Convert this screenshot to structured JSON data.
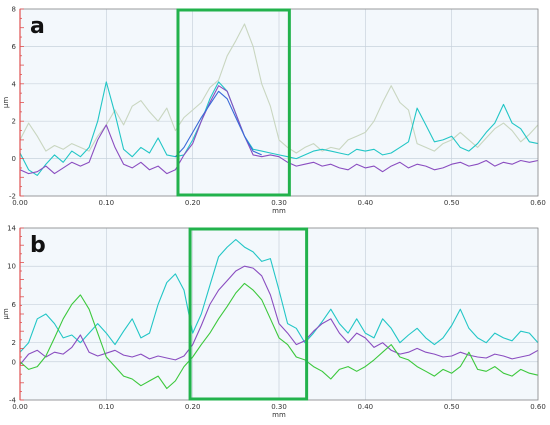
{
  "colors": {
    "plot_bg": "#f3f8fc",
    "grid": "#c8d2dc",
    "axis": "#8a8a8a",
    "y_axis_red": "#e05050",
    "highlight_box": "#22b24c",
    "series_cyan": "#22c6c6",
    "series_purple": "#8a4dc0",
    "series_blue": "#3a6ad8",
    "series_grey": "#c9d6c0",
    "series_green": "#3cc83c"
  },
  "chart_data": [
    {
      "type": "line",
      "panel_label": "a",
      "xlabel": "mm",
      "ylabel": "µm",
      "xlim": [
        0.0,
        0.6
      ],
      "ylim": [
        -2,
        8
      ],
      "x_ticks": [
        "0.00",
        "0.10",
        "0.20",
        "0.30",
        "0.40",
        "0.50",
        "0.60"
      ],
      "y_ticks": [
        "-2",
        "0",
        "2",
        "4",
        "6",
        "8"
      ],
      "x_tick_values": [
        0.0,
        0.1,
        0.2,
        0.3,
        0.4,
        0.5,
        0.6
      ],
      "y_tick_values": [
        -2,
        0,
        2,
        4,
        6,
        8
      ],
      "grid": true,
      "highlight_region": {
        "x_start": 0.183,
        "x_end": 0.312
      },
      "series": [
        {
          "color": "#c9d6c0",
          "x": [
            0.0,
            0.01,
            0.02,
            0.03,
            0.04,
            0.05,
            0.06,
            0.07,
            0.08,
            0.09,
            0.1,
            0.11,
            0.12,
            0.13,
            0.14,
            0.15,
            0.16,
            0.17,
            0.18,
            0.19,
            0.2,
            0.21,
            0.22,
            0.23,
            0.24,
            0.25,
            0.26,
            0.27,
            0.28,
            0.29,
            0.3,
            0.31,
            0.32,
            0.33,
            0.34,
            0.35,
            0.36,
            0.37,
            0.38,
            0.39,
            0.4,
            0.41,
            0.42,
            0.43,
            0.44,
            0.45,
            0.46,
            0.47,
            0.48,
            0.49,
            0.5,
            0.51,
            0.52,
            0.53,
            0.54,
            0.55,
            0.56,
            0.57,
            0.58,
            0.59,
            0.6
          ],
          "y": [
            1.0,
            1.9,
            1.2,
            0.4,
            0.7,
            0.5,
            0.8,
            0.6,
            0.4,
            1.2,
            1.8,
            2.6,
            1.8,
            2.8,
            3.1,
            2.5,
            2.0,
            2.7,
            1.5,
            2.2,
            2.6,
            3.0,
            3.8,
            4.2,
            5.5,
            6.3,
            7.2,
            6.0,
            4.0,
            2.8,
            1.0,
            0.6,
            0.3,
            0.6,
            0.8,
            0.4,
            0.6,
            0.5,
            1.0,
            1.2,
            1.4,
            2.0,
            3.0,
            3.9,
            3.0,
            2.6,
            0.8,
            0.6,
            0.4,
            0.8,
            1.0,
            1.4,
            1.0,
            0.6,
            1.1,
            1.6,
            1.9,
            1.5,
            0.9,
            1.3,
            1.8
          ]
        },
        {
          "color": "#22c6c6",
          "x": [
            0.0,
            0.01,
            0.02,
            0.03,
            0.04,
            0.05,
            0.06,
            0.07,
            0.08,
            0.09,
            0.1,
            0.11,
            0.12,
            0.13,
            0.14,
            0.15,
            0.16,
            0.17,
            0.18,
            0.19,
            0.2,
            0.21,
            0.22,
            0.23,
            0.24,
            0.25,
            0.26,
            0.27,
            0.28,
            0.29,
            0.3,
            0.31,
            0.32,
            0.33,
            0.34,
            0.35,
            0.36,
            0.37,
            0.38,
            0.39,
            0.4,
            0.41,
            0.42,
            0.43,
            0.44,
            0.45,
            0.46,
            0.47,
            0.48,
            0.49,
            0.5,
            0.51,
            0.52,
            0.53,
            0.54,
            0.55,
            0.56,
            0.57,
            0.58,
            0.59,
            0.6
          ],
          "y": [
            0.3,
            -0.6,
            -0.9,
            -0.3,
            0.2,
            -0.2,
            0.4,
            0.1,
            0.6,
            2.0,
            4.1,
            2.4,
            0.5,
            0.1,
            0.6,
            0.3,
            1.1,
            0.2,
            0.1,
            0.2,
            1.0,
            2.0,
            3.2,
            4.1,
            3.6,
            2.4,
            1.2,
            0.5,
            0.4,
            0.3,
            0.2,
            0.1,
            0.0,
            0.2,
            0.4,
            0.5,
            0.4,
            0.3,
            0.2,
            0.5,
            0.4,
            0.5,
            0.2,
            0.3,
            0.6,
            0.9,
            2.7,
            1.8,
            0.9,
            1.0,
            1.2,
            0.6,
            0.4,
            0.8,
            1.4,
            1.9,
            2.9,
            1.9,
            1.6,
            0.9,
            0.8
          ]
        },
        {
          "color": "#8a4dc0",
          "x": [
            0.0,
            0.01,
            0.02,
            0.03,
            0.04,
            0.05,
            0.06,
            0.07,
            0.08,
            0.09,
            0.1,
            0.11,
            0.12,
            0.13,
            0.14,
            0.15,
            0.16,
            0.17,
            0.18,
            0.19,
            0.2,
            0.21,
            0.22,
            0.23,
            0.24,
            0.25,
            0.26,
            0.27,
            0.28,
            0.29,
            0.3,
            0.31,
            0.32,
            0.33,
            0.34,
            0.35,
            0.36,
            0.37,
            0.38,
            0.39,
            0.4,
            0.41,
            0.42,
            0.43,
            0.44,
            0.45,
            0.46,
            0.47,
            0.48,
            0.49,
            0.5,
            0.51,
            0.52,
            0.53,
            0.54,
            0.55,
            0.56,
            0.57,
            0.58,
            0.59,
            0.6
          ],
          "y": [
            -0.6,
            -0.8,
            -0.7,
            -0.4,
            -0.8,
            -0.5,
            -0.2,
            -0.4,
            -0.2,
            1.0,
            1.8,
            0.6,
            -0.3,
            -0.5,
            -0.2,
            -0.6,
            -0.4,
            -0.8,
            -0.6,
            0.2,
            0.8,
            2.0,
            3.0,
            3.9,
            3.6,
            2.4,
            1.2,
            0.2,
            0.1,
            0.2,
            0.1,
            -0.2,
            -0.4,
            -0.3,
            -0.2,
            -0.4,
            -0.3,
            -0.5,
            -0.6,
            -0.3,
            -0.5,
            -0.4,
            -0.7,
            -0.4,
            -0.2,
            -0.5,
            -0.3,
            -0.4,
            -0.6,
            -0.5,
            -0.3,
            -0.2,
            -0.4,
            -0.3,
            -0.1,
            -0.4,
            -0.2,
            -0.3,
            -0.1,
            -0.2,
            -0.1
          ]
        },
        {
          "color": "#3a6ad8",
          "x": [
            0.18,
            0.19,
            0.2,
            0.21,
            0.22,
            0.23,
            0.24,
            0.25,
            0.26,
            0.27,
            0.28
          ],
          "y": [
            0.1,
            0.6,
            1.4,
            2.2,
            2.9,
            3.6,
            3.2,
            2.2,
            1.2,
            0.4,
            0.2
          ]
        }
      ]
    },
    {
      "type": "line",
      "panel_label": "b",
      "xlabel": "mm",
      "ylabel": "µm",
      "xlim": [
        0.0,
        0.6
      ],
      "ylim": [
        -4,
        14
      ],
      "x_ticks": [
        "0.00",
        "0.10",
        "0.20",
        "0.30",
        "0.40",
        "0.50",
        "0.60"
      ],
      "y_ticks": [
        "-4",
        "0",
        "2",
        "6",
        "10",
        "14"
      ],
      "x_tick_values": [
        0.0,
        0.1,
        0.2,
        0.3,
        0.4,
        0.5,
        0.6
      ],
      "y_tick_values": [
        -4,
        0,
        2,
        6,
        10,
        14
      ],
      "grid": true,
      "highlight_region": {
        "x_start": 0.197,
        "x_end": 0.332
      },
      "series": [
        {
          "color": "#22c6c6",
          "x": [
            0.0,
            0.01,
            0.02,
            0.03,
            0.04,
            0.05,
            0.06,
            0.07,
            0.08,
            0.09,
            0.1,
            0.11,
            0.12,
            0.13,
            0.14,
            0.15,
            0.16,
            0.17,
            0.18,
            0.19,
            0.2,
            0.21,
            0.22,
            0.23,
            0.24,
            0.25,
            0.26,
            0.27,
            0.28,
            0.29,
            0.3,
            0.31,
            0.32,
            0.33,
            0.34,
            0.35,
            0.36,
            0.37,
            0.38,
            0.39,
            0.4,
            0.41,
            0.42,
            0.43,
            0.44,
            0.45,
            0.46,
            0.47,
            0.48,
            0.49,
            0.5,
            0.51,
            0.52,
            0.53,
            0.54,
            0.55,
            0.56,
            0.57,
            0.58,
            0.59,
            0.6
          ],
          "y": [
            1.0,
            2.0,
            4.5,
            5.0,
            4.0,
            2.5,
            2.8,
            2.0,
            3.0,
            4.0,
            3.0,
            1.8,
            3.2,
            4.5,
            2.5,
            3.0,
            6.0,
            8.3,
            9.2,
            7.5,
            3.0,
            5.0,
            8.0,
            11.0,
            12.0,
            12.8,
            12.0,
            11.5,
            10.5,
            10.8,
            7.5,
            4.0,
            3.5,
            2.0,
            3.0,
            4.2,
            5.5,
            4.0,
            3.0,
            4.5,
            3.0,
            2.5,
            4.5,
            3.5,
            2.0,
            2.8,
            3.5,
            2.5,
            1.8,
            2.5,
            3.8,
            5.5,
            3.5,
            2.5,
            2.0,
            3.0,
            2.5,
            2.2,
            3.2,
            3.0,
            2.0
          ]
        },
        {
          "color": "#8a4dc0",
          "x": [
            0.0,
            0.01,
            0.02,
            0.03,
            0.04,
            0.05,
            0.06,
            0.07,
            0.08,
            0.09,
            0.1,
            0.11,
            0.12,
            0.13,
            0.14,
            0.15,
            0.16,
            0.17,
            0.18,
            0.19,
            0.2,
            0.21,
            0.22,
            0.23,
            0.24,
            0.25,
            0.26,
            0.27,
            0.28,
            0.29,
            0.3,
            0.31,
            0.32,
            0.33,
            0.34,
            0.35,
            0.36,
            0.37,
            0.38,
            0.39,
            0.4,
            0.41,
            0.42,
            0.43,
            0.44,
            0.45,
            0.46,
            0.47,
            0.48,
            0.49,
            0.5,
            0.51,
            0.52,
            0.53,
            0.54,
            0.55,
            0.56,
            0.57,
            0.58,
            0.59,
            0.6
          ],
          "y": [
            -0.3,
            0.8,
            1.2,
            0.5,
            1.0,
            0.8,
            1.5,
            2.8,
            1.0,
            0.6,
            0.9,
            1.2,
            0.7,
            0.5,
            0.8,
            0.3,
            0.6,
            0.4,
            0.2,
            0.6,
            1.8,
            3.8,
            6.0,
            7.5,
            8.5,
            9.5,
            10.0,
            9.8,
            9.0,
            7.0,
            4.0,
            3.0,
            1.8,
            2.2,
            3.2,
            4.0,
            4.5,
            3.0,
            2.0,
            3.0,
            2.5,
            1.5,
            2.0,
            1.2,
            0.8,
            1.0,
            1.4,
            1.0,
            0.8,
            0.5,
            0.6,
            1.0,
            0.7,
            0.5,
            0.4,
            0.8,
            0.6,
            0.3,
            0.5,
            0.7,
            1.2
          ]
        },
        {
          "color": "#3cc83c",
          "x": [
            0.0,
            0.01,
            0.02,
            0.03,
            0.04,
            0.05,
            0.06,
            0.07,
            0.08,
            0.09,
            0.1,
            0.11,
            0.12,
            0.13,
            0.14,
            0.15,
            0.16,
            0.17,
            0.18,
            0.19,
            0.2,
            0.21,
            0.22,
            0.23,
            0.24,
            0.25,
            0.26,
            0.27,
            0.28,
            0.29,
            0.3,
            0.31,
            0.32,
            0.33,
            0.34,
            0.35,
            0.36,
            0.37,
            0.38,
            0.39,
            0.4,
            0.41,
            0.42,
            0.43,
            0.44,
            0.45,
            0.46,
            0.47,
            0.48,
            0.49,
            0.5,
            0.51,
            0.52,
            0.53,
            0.54,
            0.55,
            0.56,
            0.57,
            0.58,
            0.59,
            0.6
          ],
          "y": [
            0.0,
            -0.8,
            -0.5,
            0.6,
            2.5,
            4.5,
            6.0,
            7.0,
            5.5,
            3.0,
            0.5,
            -0.5,
            -1.5,
            -1.8,
            -2.5,
            -2.0,
            -1.5,
            -2.8,
            -2.0,
            -0.5,
            0.5,
            1.8,
            3.0,
            4.5,
            5.8,
            7.2,
            8.2,
            7.5,
            6.5,
            4.5,
            2.5,
            1.8,
            0.5,
            0.2,
            -0.5,
            -1.0,
            -1.8,
            -0.8,
            -0.5,
            -1.0,
            -0.5,
            0.2,
            1.0,
            1.8,
            0.5,
            0.2,
            -0.5,
            -1.0,
            -1.5,
            -0.8,
            -1.2,
            -0.5,
            1.0,
            -0.8,
            -1.0,
            -0.5,
            -1.2,
            -1.5,
            -0.8,
            -1.2,
            -1.4
          ]
        }
      ]
    }
  ]
}
